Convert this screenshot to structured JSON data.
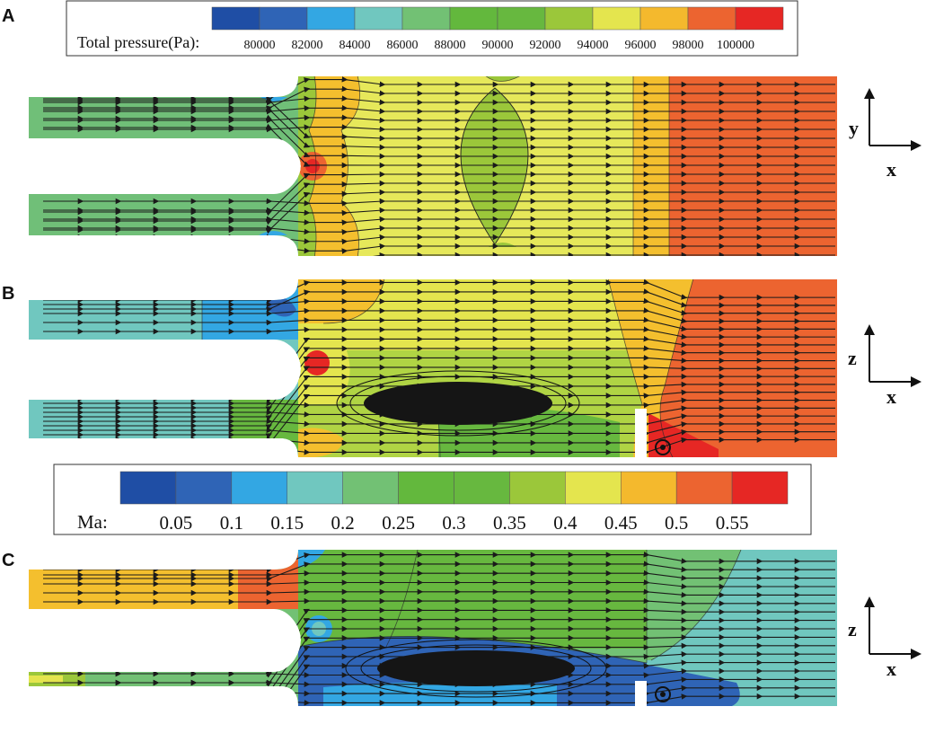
{
  "panels": {
    "A": {
      "label": "A"
    },
    "B": {
      "label": "B"
    },
    "C": {
      "label": "C"
    }
  },
  "legend_total_pressure": {
    "title": "Total pressure(Pa):",
    "ticks": [
      "80000",
      "82000",
      "84000",
      "86000",
      "88000",
      "90000",
      "92000",
      "94000",
      "96000",
      "98000",
      "100000"
    ],
    "colors": [
      "#1f4ea5",
      "#2f64b6",
      "#33a7e3",
      "#70c7bf",
      "#72c174",
      "#63b83d",
      "#67b83f",
      "#9bc73a",
      "#e4e54e",
      "#f4b92d",
      "#ec6430",
      "#e62724"
    ]
  },
  "legend_mach": {
    "title": "Ma:",
    "ticks": [
      "0.05",
      "0.1",
      "0.15",
      "0.2",
      "0.25",
      "0.3",
      "0.35",
      "0.4",
      "0.45",
      "0.5",
      "0.55"
    ],
    "colors": [
      "#1f4ea5",
      "#2f64b6",
      "#33a7e3",
      "#70c7bf",
      "#72c174",
      "#63b83d",
      "#67b83f",
      "#9bc73a",
      "#e4e54e",
      "#f4b92d",
      "#ec6430",
      "#e62724"
    ]
  },
  "axes": {
    "A": {
      "vertical": "y",
      "horizontal": "x"
    },
    "B": {
      "vertical": "z",
      "horizontal": "x"
    },
    "C": {
      "vertical": "z",
      "horizontal": "x"
    }
  }
}
